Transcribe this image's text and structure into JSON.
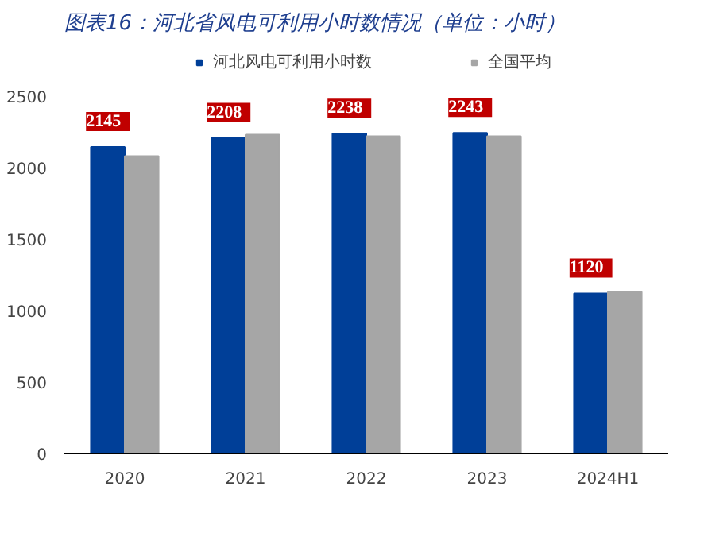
{
  "chart_data": {
    "type": "bar",
    "title": "图表16：河北省风电可利用小时数情况（单位：小时）",
    "categories": [
      "2020",
      "2021",
      "2022",
      "2023",
      "2024H1"
    ],
    "series": [
      {
        "name": "河北风电可利用小时数",
        "color": "#003f98",
        "values": [
          2145,
          2208,
          2238,
          2243,
          1120
        ],
        "value_labels": [
          "2145",
          "2208",
          "2238",
          "2243",
          "1120"
        ]
      },
      {
        "name": "全国平均",
        "color": "#a6a6a6",
        "values": [
          2080,
          2230,
          2220,
          2220,
          1130
        ]
      }
    ],
    "ylim": [
      0,
      2500
    ],
    "yticks": [
      0,
      500,
      1000,
      1500,
      2000,
      2500
    ],
    "grid": false,
    "legend": "top"
  }
}
